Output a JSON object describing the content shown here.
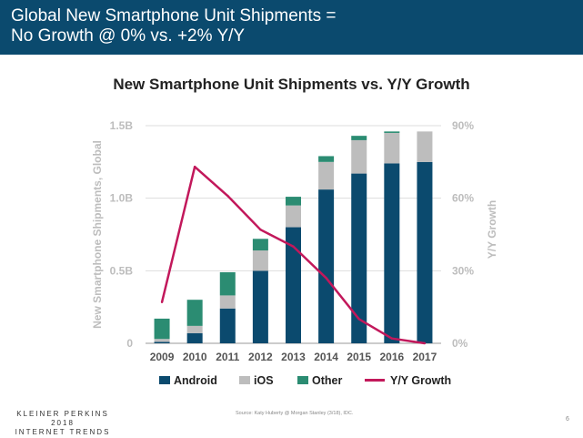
{
  "header": {
    "title": "Global New Smartphone Unit Shipments =\nNo Growth @ 0% vs. +2% Y/Y"
  },
  "footer": {
    "brand_line1": "KLEINER PERKINS",
    "brand_line2": "2018",
    "brand_line3": "INTERNET TRENDS",
    "source": "Source: Katy Huberty @ Morgan Stanley (3/18), IDC.",
    "page_number": "6"
  },
  "colors": {
    "android": "#0b4a6e",
    "ios": "#bdbdbd",
    "other": "#2b8c72",
    "growth": "#c2185b",
    "header_bg": "#0b4a6e"
  },
  "chart_data": {
    "type": "bar",
    "stacked": true,
    "title": "New Smartphone Unit Shipments vs. Y/Y Growth",
    "xlabel": "",
    "ylabel": "New Smartphone Shipments, Global",
    "y2label": "Y/Y Growth",
    "categories": [
      "2009",
      "2010",
      "2011",
      "2012",
      "2013",
      "2014",
      "2015",
      "2016",
      "2017"
    ],
    "ylim": [
      0,
      1.5
    ],
    "yticks": [
      0,
      0.5,
      1.0,
      1.5
    ],
    "ytick_labels": [
      "0",
      "0.5B",
      "1.0B",
      "1.5B"
    ],
    "y2lim": [
      0,
      90
    ],
    "y2ticks": [
      0,
      30,
      60,
      90
    ],
    "y2tick_labels": [
      "0%",
      "30%",
      "60%",
      "90%"
    ],
    "grid": true,
    "legend_position": "bottom",
    "series": [
      {
        "name": "Android",
        "values": [
          0.01,
          0.07,
          0.24,
          0.5,
          0.8,
          1.06,
          1.17,
          1.24,
          1.25
        ]
      },
      {
        "name": "iOS",
        "values": [
          0.02,
          0.05,
          0.09,
          0.14,
          0.15,
          0.19,
          0.23,
          0.21,
          0.21
        ]
      },
      {
        "name": "Other",
        "values": [
          0.14,
          0.18,
          0.16,
          0.08,
          0.06,
          0.04,
          0.03,
          0.01,
          0.0
        ]
      },
      {
        "name": "Y/Y Growth",
        "type": "line",
        "axis": "secondary",
        "values": [
          17,
          73,
          61,
          47,
          40,
          27,
          10,
          2,
          0
        ]
      }
    ]
  }
}
